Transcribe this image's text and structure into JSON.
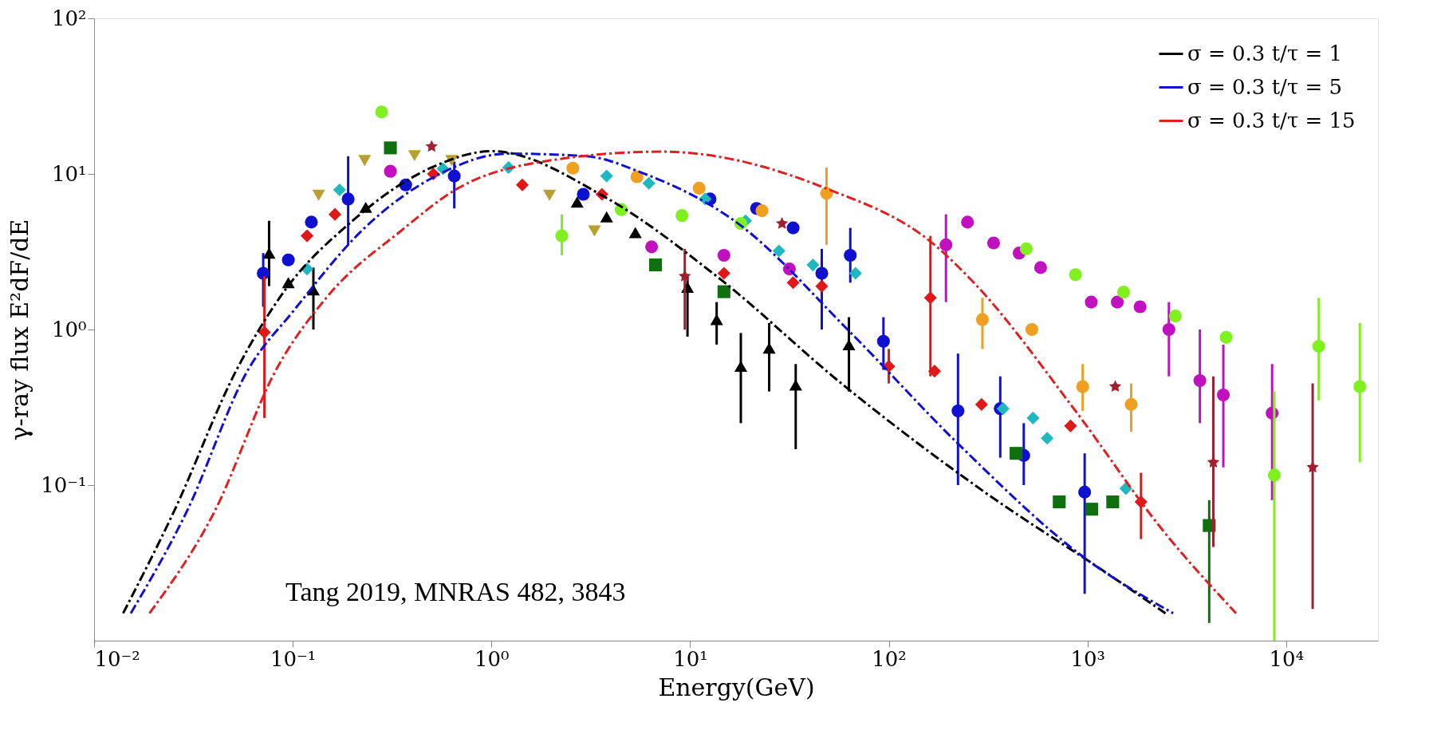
{
  "chart_data": {
    "type": "scatter",
    "xlabel": "Energy(GeV)",
    "ylabel": "γ-ray flux E²dF/dE",
    "log": "xy",
    "grid": false,
    "legend": "top right",
    "xlim": [
      0.01,
      29000
    ],
    "ylim": [
      0.01,
      100
    ],
    "xticks": [
      {
        "value": 0.01,
        "label": "10⁻²"
      },
      {
        "value": 0.1,
        "label": "10⁻¹"
      },
      {
        "value": 1,
        "label": "10⁰"
      },
      {
        "value": 10,
        "label": "10¹"
      },
      {
        "value": 100,
        "label": "10²"
      },
      {
        "value": 1000,
        "label": "10³"
      },
      {
        "value": 10000,
        "label": "10⁴"
      }
    ],
    "yticks": [
      {
        "value": 0.1,
        "label": "10⁻¹"
      },
      {
        "value": 1,
        "label": "10⁰"
      },
      {
        "value": 10,
        "label": "10¹"
      },
      {
        "value": 100,
        "label": "10²"
      }
    ],
    "annotations": [
      "Tang 2019, MNRAS 482, 3843"
    ],
    "series": [
      {
        "name": "σ = 0.3 t/τ = 1",
        "type": "line",
        "line_style": "dashed",
        "color": "#000000",
        "x": [
          0.014,
          0.025,
          0.0525,
          0.087,
          0.2,
          0.5,
          1,
          3.8,
          13.6,
          59,
          316,
          1260,
          2470
        ],
        "values": [
          0.015,
          0.066,
          0.56,
          1.64,
          5,
          11,
          14,
          7.0,
          2.2,
          0.44,
          0.087,
          0.027,
          0.015
        ]
      },
      {
        "name": "σ = 0.3 t/τ = 5",
        "type": "line",
        "line_style": "dashed",
        "color": "#1010d0",
        "x": [
          0.0153,
          0.029,
          0.06,
          0.1,
          0.23,
          0.55,
          1.2,
          3,
          5.8,
          16.7,
          64,
          218,
          1000,
          2700
        ],
        "values": [
          0.015,
          0.066,
          0.56,
          1.3,
          4.5,
          10,
          13.5,
          13,
          10.1,
          5.0,
          0.96,
          0.19,
          0.033,
          0.015
        ]
      },
      {
        "name": "σ = 0.3 t/τ = 15",
        "type": "line",
        "line_style": "dashed",
        "color": "#e02020",
        "x": [
          0.019,
          0.04,
          0.083,
          0.15,
          0.35,
          0.68,
          1.5,
          7.2,
          48,
          170,
          268,
          870,
          2400,
          5600
        ],
        "values": [
          0.015,
          0.066,
          0.56,
          1.64,
          4.3,
          8.1,
          11.5,
          13.9,
          8.1,
          3.5,
          2.0,
          0.3,
          0.051,
          0.015
        ]
      },
      {
        "type": "scatter",
        "marker": "triangle",
        "color": "#000000",
        "x": [
          0.076,
          0.095,
          0.127,
          0.233,
          2.7,
          3.8,
          5.3,
          9.7,
          13.6,
          18,
          25,
          34,
          63
        ],
        "values": [
          3.1,
          2.0,
          1.8,
          6.1,
          6.6,
          5.3,
          4.2,
          1.87,
          1.16,
          0.58,
          0.76,
          0.44,
          0.8
        ],
        "errors": [
          [
            1.9,
            5
          ],
          null,
          [
            1.0,
            2.5
          ],
          null,
          null,
          null,
          null,
          [
            0.9,
            2.2
          ],
          [
            0.8,
            1.5
          ],
          [
            0.25,
            0.95
          ],
          [
            0.4,
            1.1
          ],
          [
            0.17,
            0.6
          ],
          [
            0.4,
            1.2
          ]
        ]
      },
      {
        "type": "scatter",
        "marker": "circle",
        "color": "#1010d0",
        "x": [
          0.071,
          0.095,
          0.124,
          0.19,
          0.37,
          0.65,
          2.9,
          12.6,
          21.6,
          33,
          46,
          64,
          94,
          223,
          364,
          478,
          968
        ],
        "values": [
          2.3,
          2.8,
          4.9,
          6.9,
          8.5,
          9.7,
          7.4,
          6.9,
          6.0,
          4.5,
          2.3,
          3.0,
          0.84,
          0.3,
          0.31,
          0.155,
          0.09
        ],
        "errors": [
          [
            1.4,
            3.1
          ],
          null,
          null,
          [
            3.5,
            13
          ],
          null,
          [
            6,
            12
          ],
          null,
          null,
          null,
          null,
          [
            1.0,
            3.3
          ],
          [
            2,
            4.5
          ],
          [
            0.55,
            1.2
          ],
          [
            0.1,
            0.7
          ],
          [
            0.15,
            0.5
          ],
          [
            0.1,
            0.25
          ],
          [
            0.02,
            0.16
          ]
        ]
      },
      {
        "type": "scatter",
        "marker": "diamond",
        "color": "#e01818",
        "x": [
          0.072,
          0.118,
          0.163,
          0.51,
          1.43,
          3.6,
          14.8,
          33,
          46,
          100,
          162,
          170,
          293,
          822,
          1860
        ],
        "values": [
          0.96,
          4.0,
          5.5,
          10,
          8.5,
          7.4,
          2.3,
          2.0,
          1.9,
          0.58,
          1.6,
          0.54,
          0.33,
          0.24,
          0.078
        ],
        "errors": [
          [
            0.27,
            2.2
          ],
          null,
          null,
          null,
          null,
          null,
          null,
          null,
          null,
          [
            0.45,
            0.75
          ],
          [
            0.5,
            4
          ],
          null,
          null,
          null,
          [
            0.045,
            0.12
          ]
        ]
      },
      {
        "type": "scatter",
        "marker": "diamond",
        "color": "#20b8c0",
        "x": [
          0.118,
          0.172,
          0.57,
          1.22,
          3.8,
          6.2,
          11.9,
          19,
          28,
          41.5,
          68,
          376,
          532,
          627,
          1560
        ],
        "values": [
          2.45,
          7.9,
          10.8,
          11,
          9.7,
          8.7,
          6.9,
          5.0,
          3.2,
          2.6,
          2.3,
          0.31,
          0.27,
          0.2,
          0.095
        ]
      },
      {
        "type": "scatter",
        "marker": "square",
        "color": "#107010",
        "x": [
          0.31,
          6.7,
          14.8,
          437,
          721,
          1050,
          1340,
          4100
        ],
        "values": [
          14.7,
          2.6,
          1.75,
          0.16,
          0.078,
          0.07,
          0.078,
          0.055
        ],
        "errors": [
          null,
          null,
          null,
          null,
          null,
          null,
          null,
          [
            0.013,
            0.08
          ]
        ]
      },
      {
        "type": "scatter",
        "marker": "circle",
        "color": "#c010c0",
        "x": [
          0.31,
          6.4,
          14.8,
          31.6,
          194,
          249,
          337,
          453,
          581,
          1045,
          1413,
          1840,
          2570,
          3680,
          4830,
          8500
        ],
        "values": [
          10.4,
          3.4,
          3.0,
          2.45,
          3.5,
          4.9,
          3.6,
          3.1,
          2.5,
          1.5,
          1.5,
          1.4,
          1.0,
          0.47,
          0.38,
          0.29
        ],
        "errors": [
          null,
          null,
          null,
          null,
          [
            1.5,
            5.5
          ],
          null,
          null,
          null,
          null,
          null,
          null,
          null,
          [
            0.5,
            1.5
          ],
          [
            0.25,
            1.0
          ],
          [
            0.13,
            0.8
          ],
          [
            0.08,
            0.6
          ]
        ]
      },
      {
        "type": "scatter",
        "marker": "circle",
        "color": "#80f020",
        "x": [
          0.28,
          2.26,
          4.5,
          9.1,
          18,
          492,
          870,
          1520,
          2770,
          4990,
          8720,
          14600,
          23500
        ],
        "values": [
          25,
          4.0,
          5.9,
          5.4,
          4.8,
          3.3,
          2.25,
          1.74,
          1.22,
          0.89,
          0.116,
          0.78,
          0.43
        ],
        "errors": [
          null,
          [
            3,
            5.5
          ],
          null,
          null,
          null,
          null,
          null,
          null,
          null,
          null,
          [
            0.01,
            0.4
          ],
          [
            0.35,
            1.6
          ],
          [
            0.14,
            1.1
          ]
        ]
      },
      {
        "type": "scatter",
        "marker": "circle",
        "color": "#f0a020",
        "x": [
          2.57,
          5.4,
          11.1,
          23,
          48.6,
          296,
          525,
          946,
          1660
        ],
        "values": [
          10.9,
          9.6,
          8.1,
          5.8,
          7.5,
          1.16,
          1.0,
          0.43,
          0.33
        ],
        "errors": [
          null,
          null,
          null,
          null,
          [
            3.5,
            11
          ],
          [
            0.75,
            1.6
          ],
          null,
          [
            0.3,
            0.6
          ],
          [
            0.22,
            0.45
          ]
        ]
      },
      {
        "type": "scatter",
        "marker": "triangle-down",
        "color": "#b8a030",
        "x": [
          0.135,
          0.23,
          0.41,
          0.63,
          1.96,
          3.3
        ],
        "values": [
          7.3,
          12.2,
          13.1,
          12.2,
          7.3,
          4.3
        ]
      },
      {
        "type": "scatter",
        "marker": "star",
        "color": "#a02030",
        "x": [
          0.5,
          9.4,
          29,
          1380,
          4300,
          13600
        ],
        "values": [
          15,
          2.2,
          4.8,
          0.43,
          0.14,
          0.13
        ],
        "errors": [
          null,
          [
            1,
            3.3
          ],
          null,
          null,
          [
            0.04,
            0.5
          ],
          [
            0.016,
            0.45
          ]
        ]
      }
    ]
  }
}
